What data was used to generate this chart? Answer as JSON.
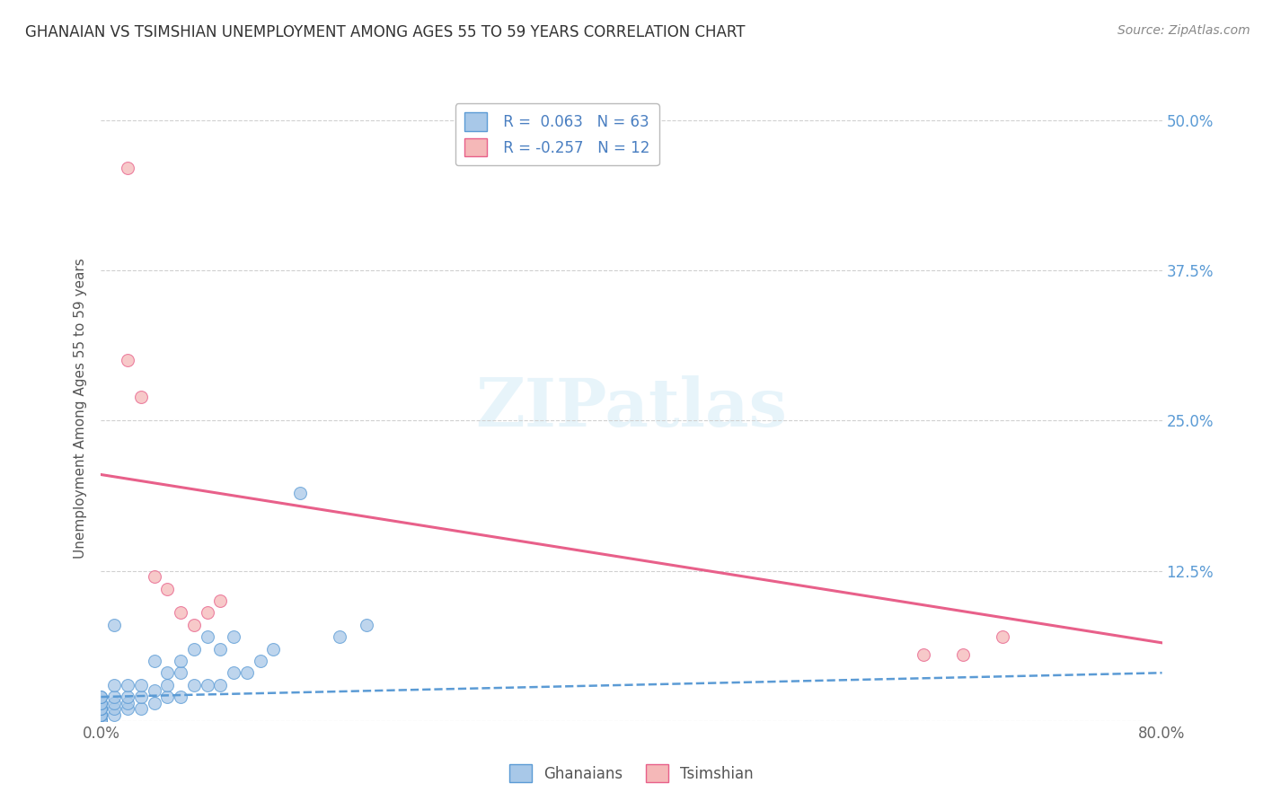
{
  "title": "GHANAIAN VS TSIMSHIAN UNEMPLOYMENT AMONG AGES 55 TO 59 YEARS CORRELATION CHART",
  "source": "Source: ZipAtlas.com",
  "ylabel": "Unemployment Among Ages 55 to 59 years",
  "ghanaian_label": "Ghanaians",
  "tsimshian_label": "Tsimshian",
  "ghanaian_R": 0.063,
  "ghanaian_N": 63,
  "tsimshian_R": -0.257,
  "tsimshian_N": 12,
  "ghanaian_color": "#a8c8e8",
  "tsimshian_color": "#f5b8b8",
  "trend_ghanaian_color": "#5b9bd5",
  "trend_tsimshian_color": "#e8608a",
  "xlim": [
    0.0,
    0.8
  ],
  "ylim": [
    0.0,
    0.52
  ],
  "yticks": [
    0.0,
    0.125,
    0.25,
    0.375,
    0.5
  ],
  "ytick_labels": [
    "",
    "12.5%",
    "25.0%",
    "37.5%",
    "50.0%"
  ],
  "ghanaian_x": [
    0.0,
    0.0,
    0.0,
    0.0,
    0.0,
    0.0,
    0.0,
    0.0,
    0.0,
    0.0,
    0.0,
    0.0,
    0.0,
    0.0,
    0.0,
    0.0,
    0.0,
    0.0,
    0.0,
    0.0,
    0.0,
    0.0,
    0.0,
    0.0,
    0.0,
    0.0,
    0.0,
    0.01,
    0.01,
    0.01,
    0.01,
    0.01,
    0.02,
    0.02,
    0.02,
    0.02,
    0.03,
    0.03,
    0.03,
    0.04,
    0.04,
    0.05,
    0.05,
    0.06,
    0.06,
    0.07,
    0.08,
    0.09,
    0.1,
    0.11,
    0.12,
    0.13,
    0.18,
    0.2,
    0.04,
    0.05,
    0.06,
    0.07,
    0.08,
    0.09,
    0.1,
    0.15,
    0.01
  ],
  "ghanaian_y": [
    0.0,
    0.0,
    0.0,
    0.0,
    0.0,
    0.0,
    0.0,
    0.0,
    0.0,
    0.0,
    0.0,
    0.0,
    0.0,
    0.0,
    0.0,
    0.0,
    0.005,
    0.005,
    0.005,
    0.005,
    0.01,
    0.01,
    0.01,
    0.015,
    0.015,
    0.02,
    0.02,
    0.005,
    0.01,
    0.015,
    0.02,
    0.03,
    0.01,
    0.015,
    0.02,
    0.03,
    0.01,
    0.02,
    0.03,
    0.015,
    0.025,
    0.02,
    0.03,
    0.02,
    0.04,
    0.03,
    0.03,
    0.03,
    0.04,
    0.04,
    0.05,
    0.06,
    0.07,
    0.08,
    0.05,
    0.04,
    0.05,
    0.06,
    0.07,
    0.06,
    0.07,
    0.19,
    0.08
  ],
  "tsimshian_x": [
    0.02,
    0.02,
    0.03,
    0.04,
    0.05,
    0.06,
    0.07,
    0.08,
    0.09,
    0.62,
    0.65,
    0.68
  ],
  "tsimshian_y": [
    0.46,
    0.3,
    0.27,
    0.12,
    0.11,
    0.09,
    0.08,
    0.09,
    0.1,
    0.055,
    0.055,
    0.07
  ],
  "trend_g_x0": 0.0,
  "trend_g_x1": 0.8,
  "trend_g_y0": 0.02,
  "trend_g_y1": 0.04,
  "trend_t_x0": 0.0,
  "trend_t_x1": 0.8,
  "trend_t_y0": 0.205,
  "trend_t_y1": 0.065
}
